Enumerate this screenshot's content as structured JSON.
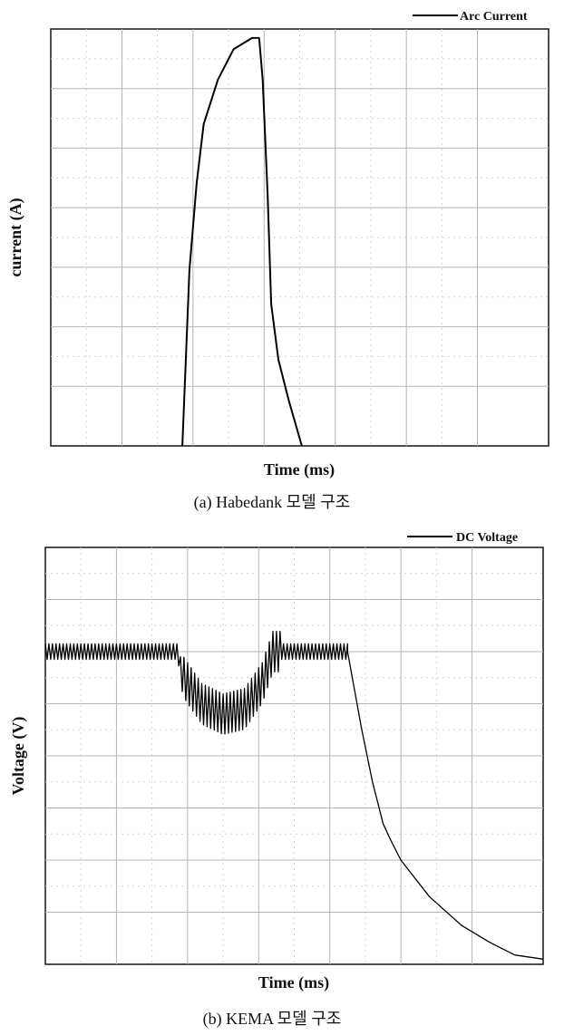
{
  "chart_data": [
    {
      "type": "line",
      "caption": "(a) Habedank 모델 구조",
      "xlabel": "Time (ms)",
      "ylabel": "current (A)",
      "legend": "top-right",
      "grid": true,
      "xlim": [
        0,
        7
      ],
      "ylim": [
        0,
        7
      ],
      "series": [
        {
          "name": "Arc Current",
          "color": "#000000",
          "x": [
            1.85,
            1.95,
            2.05,
            2.15,
            2.35,
            2.57,
            2.83,
            2.93,
            2.98,
            3.05,
            3.1,
            3.2,
            3.35,
            3.53
          ],
          "y": [
            0.0,
            2.95,
            4.4,
            5.4,
            6.15,
            6.66,
            6.85,
            6.85,
            6.15,
            4.2,
            2.38,
            1.45,
            0.75,
            0.0
          ]
        }
      ]
    },
    {
      "type": "line",
      "caption": "(b) KEMA 모델 구조",
      "xlabel": "Time (ms)",
      "ylabel": "Voltage (V)",
      "legend": "top-right",
      "grid": true,
      "xlim": [
        0,
        7
      ],
      "ylim": [
        0,
        8
      ],
      "series": [
        {
          "name": "DC Voltage",
          "color": "#000000",
          "x": [
            0,
            1.85,
            1.95,
            2.2,
            2.5,
            2.8,
            3.05,
            3.2,
            3.4,
            4.25,
            4.45,
            4.6,
            4.75,
            4.85,
            5.0,
            5.4,
            5.85,
            6.25,
            6.6,
            7.0
          ],
          "y": [
            6.0,
            6.0,
            5.5,
            5.0,
            4.8,
            4.9,
            5.4,
            6.0,
            6.0,
            6.0,
            4.5,
            3.5,
            2.7,
            2.4,
            2.0,
            1.3,
            0.75,
            0.42,
            0.18,
            0.1
          ],
          "ripple": 0.3
        }
      ]
    }
  ]
}
